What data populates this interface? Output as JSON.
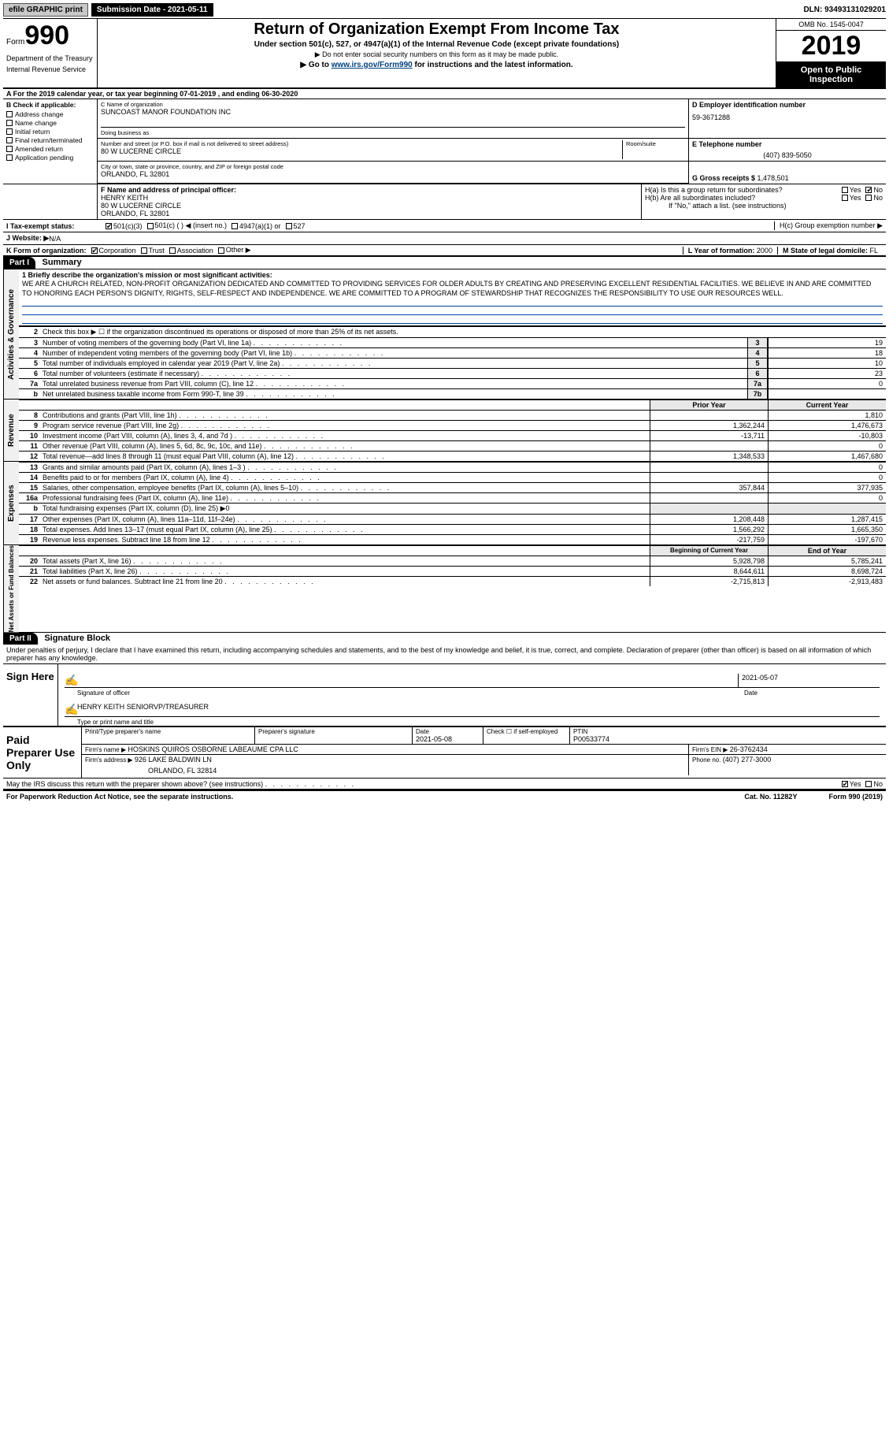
{
  "topbar": {
    "efile": "efile GRAPHIC print",
    "sub_label": "Submission Date - ",
    "sub_date": "2021-05-11",
    "dln_label": "DLN: ",
    "dln": "93493131029201"
  },
  "header": {
    "form_prefix": "Form",
    "form_num": "990",
    "title": "Return of Organization Exempt From Income Tax",
    "subtitle": "Under section 501(c), 527, or 4947(a)(1) of the Internal Revenue Code (except private foundations)",
    "note1": "▶ Do not enter social security numbers on this form as it may be made public.",
    "note2_pre": "▶ Go to ",
    "note2_link": "www.irs.gov/Form990",
    "note2_post": " for instructions and the latest information.",
    "dept1": "Department of the Treasury",
    "dept2": "Internal Revenue Service",
    "omb": "OMB No. 1545-0047",
    "year": "2019",
    "open": "Open to Public Inspection"
  },
  "lineA": "A   For the 2019 calendar year, or tax year beginning 07-01-2019    , and ending 06-30-2020",
  "sectionB": {
    "label": "B Check if applicable:",
    "items": [
      "Address change",
      "Name change",
      "Initial return",
      "Final return/terminated",
      "Amended return",
      "Application pending"
    ]
  },
  "sectionC": {
    "name_lbl": "C Name of organization",
    "name": "SUNCOAST MANOR FOUNDATION INC",
    "dba_lbl": "Doing business as",
    "addr_lbl": "Number and street (or P.O. box if mail is not delivered to street address)",
    "room_lbl": "Room/suite",
    "addr": "80 W LUCERNE CIRCLE",
    "city_lbl": "City or town, state or province, country, and ZIP or foreign postal code",
    "city": "ORLANDO, FL  32801"
  },
  "sectionD": {
    "lbl": "D Employer identification number",
    "val": "59-3671288"
  },
  "sectionE": {
    "lbl": "E Telephone number",
    "val": "(407) 839-5050"
  },
  "sectionG": {
    "lbl": "G Gross receipts $ ",
    "val": "1,478,501"
  },
  "sectionF": {
    "lbl": "F  Name and address of principal officer:",
    "name": "HENRY KEITH",
    "addr1": "80 W LUCERNE CIRCLE",
    "addr2": "ORLANDO, FL  32801"
  },
  "sectionH": {
    "a_lbl": "H(a)  Is this a group return for subordinates?",
    "b_lbl": "H(b)  Are all subordinates included?",
    "note": "If \"No,\" attach a list. (see instructions)",
    "c_lbl": "H(c)  Group exemption number ▶",
    "yes": "Yes",
    "no": "No"
  },
  "lineI": {
    "lbl": "I   Tax-exempt status:",
    "opts": [
      "501(c)(3)",
      "501(c) (   ) ◀ (insert no.)",
      "4947(a)(1) or",
      "527"
    ]
  },
  "lineJ": {
    "lbl": "J   Website: ▶",
    "val": " N/A"
  },
  "lineK": {
    "lbl": "K Form of organization:",
    "opts": [
      "Corporation",
      "Trust",
      "Association",
      "Other ▶"
    ]
  },
  "lineL": {
    "lbl": "L Year of formation: ",
    "val": "2000"
  },
  "lineM": {
    "lbl": "M State of legal domicile: ",
    "val": "FL"
  },
  "part1": {
    "hdr": "Part I",
    "title": "Summary",
    "line1_lbl": "1  Briefly describe the organization's mission or most significant activities:",
    "mission": "WE ARE A CHURCH RELATED, NON-PROFIT ORGANIZATION DEDICATED AND COMMITTED TO PROVIDING SERVICES FOR OLDER ADULTS BY CREATING AND PRESERVING EXCELLENT RESIDENTIAL FACILITIES. WE BELIEVE IN AND ARE COMMITTED TO HONORING EACH PERSON'S DIGNITY, RIGHTS, SELF-RESPECT AND INDEPENDENCE. WE ARE COMMITTED TO A PROGRAM OF STEWARDSHIP THAT RECOGNIZES THE RESPONSIBILITY TO USE OUR RESOURCES WELL.",
    "line2": "Check this box ▶ ☐  if the organization discontinued its operations or disposed of more than 25% of its net assets.",
    "vtab_ag": "Activities & Governance",
    "vtab_rev": "Revenue",
    "vtab_exp": "Expenses",
    "vtab_na": "Net Assets or Fund Balances",
    "rows_ag": [
      {
        "n": "3",
        "t": "Number of voting members of the governing body (Part VI, line 1a)",
        "box": "3",
        "v": "19"
      },
      {
        "n": "4",
        "t": "Number of independent voting members of the governing body (Part VI, line 1b)",
        "box": "4",
        "v": "18"
      },
      {
        "n": "5",
        "t": "Total number of individuals employed in calendar year 2019 (Part V, line 2a)",
        "box": "5",
        "v": "10"
      },
      {
        "n": "6",
        "t": "Total number of volunteers (estimate if necessary)",
        "box": "6",
        "v": "23"
      },
      {
        "n": "7a",
        "t": "Total unrelated business revenue from Part VIII, column (C), line 12",
        "box": "7a",
        "v": "0"
      },
      {
        "n": "b",
        "t": "Net unrelated business taxable income from Form 990-T, line 39",
        "box": "7b",
        "v": ""
      }
    ],
    "hdr_prior": "Prior Year",
    "hdr_curr": "Current Year",
    "rows_rev": [
      {
        "n": "8",
        "t": "Contributions and grants (Part VIII, line 1h)",
        "p": "",
        "c": "1,810"
      },
      {
        "n": "9",
        "t": "Program service revenue (Part VIII, line 2g)",
        "p": "1,362,244",
        "c": "1,476,673"
      },
      {
        "n": "10",
        "t": "Investment income (Part VIII, column (A), lines 3, 4, and 7d )",
        "p": "-13,711",
        "c": "-10,803"
      },
      {
        "n": "11",
        "t": "Other revenue (Part VIII, column (A), lines 5, 6d, 8c, 9c, 10c, and 11e)",
        "p": "",
        "c": "0"
      },
      {
        "n": "12",
        "t": "Total revenue—add lines 8 through 11 (must equal Part VIII, column (A), line 12)",
        "p": "1,348,533",
        "c": "1,467,680"
      }
    ],
    "rows_exp": [
      {
        "n": "13",
        "t": "Grants and similar amounts paid (Part IX, column (A), lines 1–3 )",
        "p": "",
        "c": "0"
      },
      {
        "n": "14",
        "t": "Benefits paid to or for members (Part IX, column (A), line 4)",
        "p": "",
        "c": "0"
      },
      {
        "n": "15",
        "t": "Salaries, other compensation, employee benefits (Part IX, column (A), lines 5–10)",
        "p": "357,844",
        "c": "377,935"
      },
      {
        "n": "16a",
        "t": "Professional fundraising fees (Part IX, column (A), line 11e)",
        "p": "",
        "c": "0"
      },
      {
        "n": "b",
        "t": "Total fundraising expenses (Part IX, column (D), line 25) ▶0",
        "p": "—",
        "c": "—"
      },
      {
        "n": "17",
        "t": "Other expenses (Part IX, column (A), lines 11a–11d, 11f–24e)",
        "p": "1,208,448",
        "c": "1,287,415"
      },
      {
        "n": "18",
        "t": "Total expenses. Add lines 13–17 (must equal Part IX, column (A), line 25)",
        "p": "1,566,292",
        "c": "1,665,350"
      },
      {
        "n": "19",
        "t": "Revenue less expenses. Subtract line 18 from line 12",
        "p": "-217,759",
        "c": "-197,670"
      }
    ],
    "hdr_beg": "Beginning of Current Year",
    "hdr_end": "End of Year",
    "rows_na": [
      {
        "n": "20",
        "t": "Total assets (Part X, line 16)",
        "p": "5,928,798",
        "c": "5,785,241"
      },
      {
        "n": "21",
        "t": "Total liabilities (Part X, line 26)",
        "p": "8,644,611",
        "c": "8,698,724"
      },
      {
        "n": "22",
        "t": "Net assets or fund balances. Subtract line 21 from line 20",
        "p": "-2,715,813",
        "c": "-2,913,483"
      }
    ]
  },
  "part2": {
    "hdr": "Part II",
    "title": "Signature Block",
    "decl": "Under penalties of perjury, I declare that I have examined this return, including accompanying schedules and statements, and to the best of my knowledge and belief, it is true, correct, and complete. Declaration of preparer (other than officer) is based on all information of which preparer has any knowledge.",
    "sign_here": "Sign Here",
    "sig_of": "Signature of officer",
    "sig_date": "2021-05-07",
    "date_lbl": "Date",
    "name_title": "HENRY KEITH SENIORVP/TREASURER",
    "type_name": "Type or print name and title",
    "paid": "Paid Preparer Use Only",
    "pt_name_lbl": "Print/Type preparer's name",
    "pt_sig_lbl": "Preparer's signature",
    "pt_date_lbl": "Date",
    "pt_date": "2021-05-08",
    "pt_check": "Check ☐ if self-employed",
    "ptin_lbl": "PTIN",
    "ptin": "P00533774",
    "firm_name_lbl": "Firm's name     ▶ ",
    "firm_name": "HOSKINS QUIROS OSBORNE LABEAUME CPA LLC",
    "firm_ein_lbl": "Firm's EIN ▶ ",
    "firm_ein": "26-3762434",
    "firm_addr_lbl": "Firm's address ▶ ",
    "firm_addr1": "926 LAKE BALDWIN LN",
    "firm_addr2": "ORLANDO, FL  32814",
    "phone_lbl": "Phone no. ",
    "phone": "(407) 277-3000",
    "may_irs": "May the IRS discuss this return with the preparer shown above? (see instructions)",
    "yes": "Yes",
    "no": "No"
  },
  "footer": {
    "pra": "For Paperwork Reduction Act Notice, see the separate instructions.",
    "cat": "Cat. No. 11282Y",
    "form": "Form 990 (2019)"
  }
}
